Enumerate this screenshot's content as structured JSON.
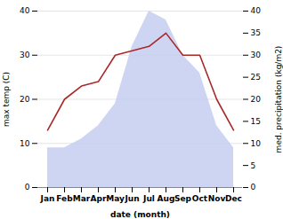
{
  "chart_data": {
    "type": "line",
    "categories": [
      "Jan",
      "Feb",
      "Mar",
      "Apr",
      "May",
      "Jun",
      "Jul",
      "Aug",
      "Sep",
      "Oct",
      "Nov",
      "Dec"
    ],
    "xlabel": "date (month)",
    "ylabel": "max temp (C)",
    "y2label": "med. precipitation (kg/m2)",
    "series": [
      {
        "type": "area",
        "axis": "y2",
        "color": "#c5cef0",
        "values": [
          9,
          9,
          11,
          14,
          19,
          32,
          40,
          38,
          30,
          26,
          14,
          9
        ]
      },
      {
        "type": "line",
        "color": "#aa2828",
        "values": [
          13,
          20,
          23,
          24,
          30,
          31,
          32,
          35,
          30,
          30,
          20,
          13
        ]
      }
    ],
    "ylim": [
      0,
      40
    ],
    "yticks": [
      0,
      10,
      20,
      30,
      40
    ],
    "y2lim": [
      0,
      40
    ],
    "y2ticks": [
      0,
      5,
      10,
      15,
      20,
      25,
      30,
      35,
      40
    ],
    "grid": true
  }
}
